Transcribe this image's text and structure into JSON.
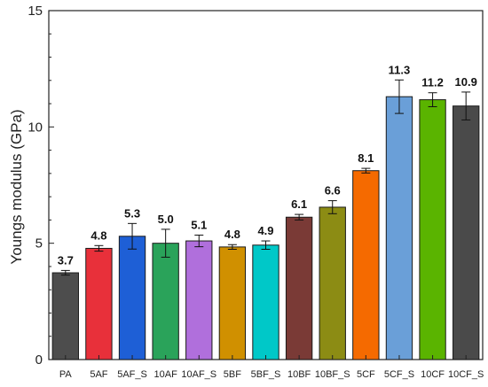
{
  "chart_data": {
    "type": "bar",
    "title": "",
    "xlabel": "",
    "ylabel": "Youngs modulus (GPa)",
    "ylim": [
      0,
      15
    ],
    "yticks": [
      0,
      5,
      10,
      15
    ],
    "grid": false,
    "categories": [
      "PA",
      "5AF",
      "5AF_S",
      "10AF",
      "10AF_S",
      "5BF",
      "5BF_S",
      "10BF",
      "10BF_S",
      "5CF",
      "5CF_S",
      "10CF",
      "10CF_S"
    ],
    "values": [
      3.73,
      4.78,
      5.3,
      5.0,
      5.1,
      4.84,
      4.92,
      6.12,
      6.55,
      8.12,
      11.3,
      11.17,
      10.9
    ],
    "errors": [
      0.1,
      0.12,
      0.55,
      0.6,
      0.25,
      0.1,
      0.18,
      0.12,
      0.28,
      0.1,
      0.72,
      0.3,
      0.6
    ],
    "data_labels": [
      "3.7",
      "4.8",
      "5.3",
      "5.0",
      "5.1",
      "4.8",
      "4.9",
      "6.1",
      "6.6",
      "8.1",
      "11.3",
      "11.2",
      "10.9"
    ],
    "colors": [
      "#4d4d4d",
      "#e8303a",
      "#1e5fd6",
      "#2aa35a",
      "#b06fdc",
      "#d09000",
      "#00c8c8",
      "#7a3a36",
      "#8c8c14",
      "#f56a00",
      "#6a9fd8",
      "#5ab400",
      "#4a4a4a"
    ]
  }
}
